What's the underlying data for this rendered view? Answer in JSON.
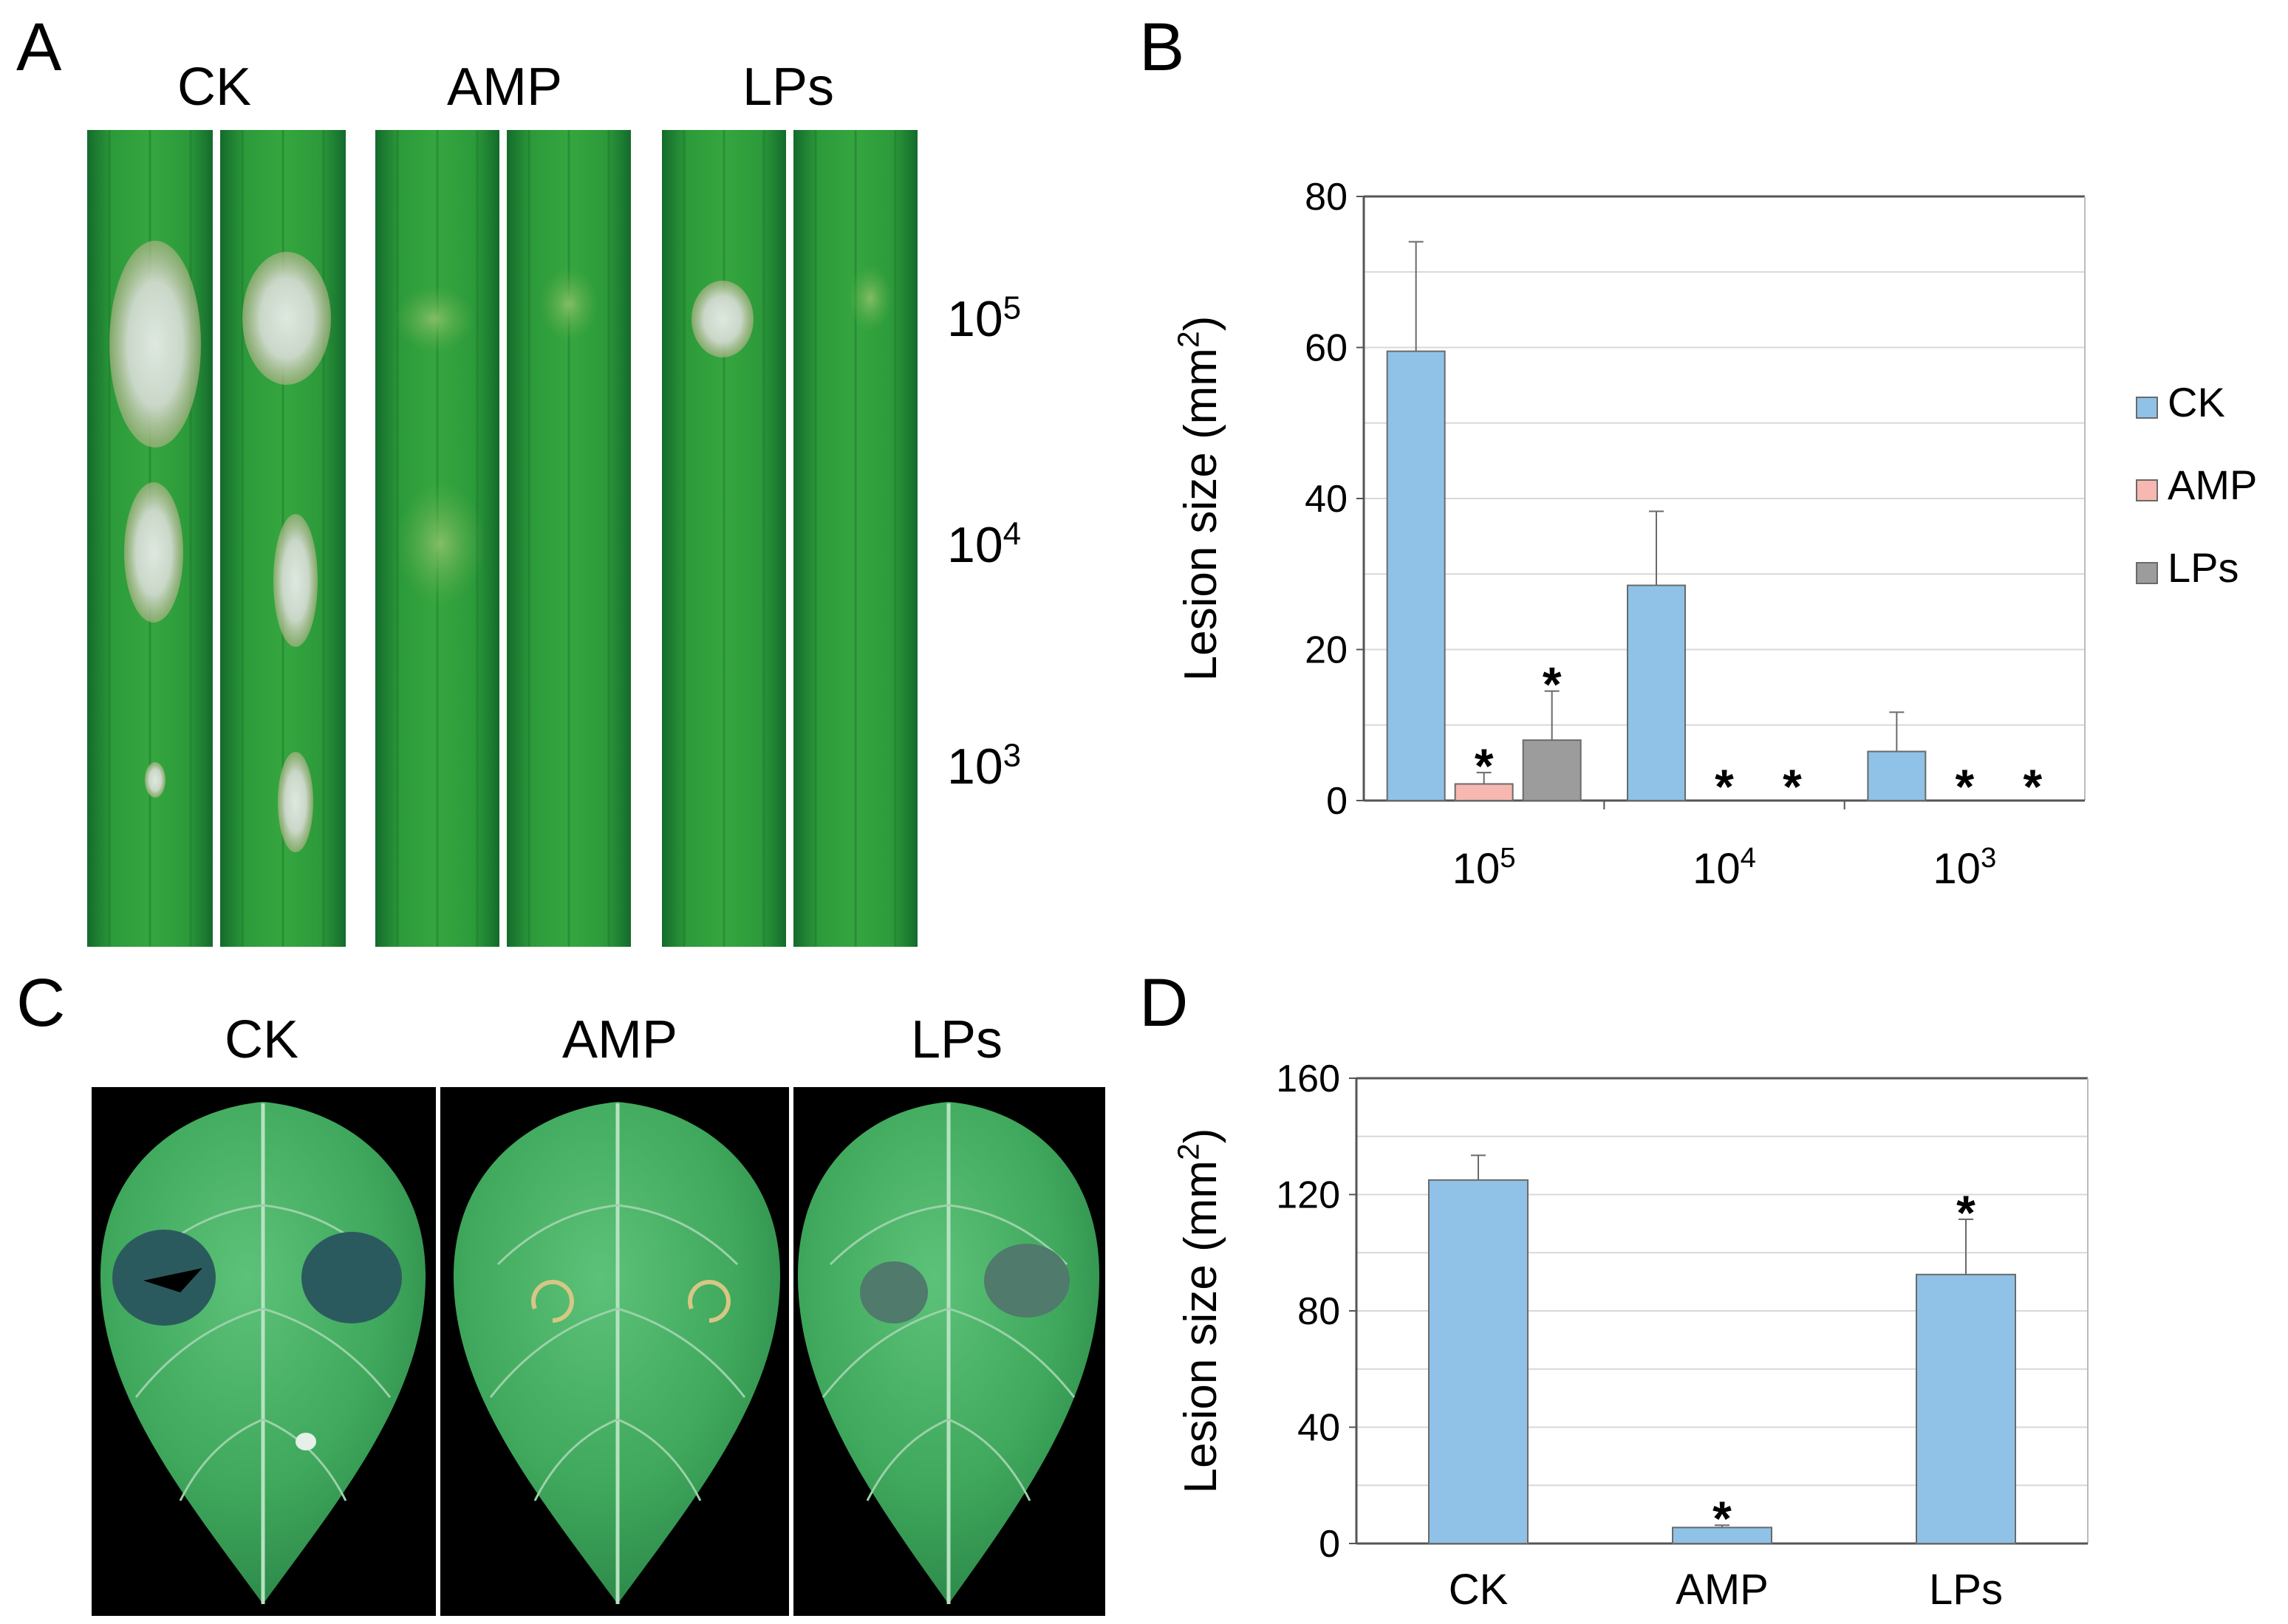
{
  "figure": {
    "panel_a": {
      "letter": "A",
      "groups": [
        "CK",
        "AMP",
        "LPs"
      ],
      "doses": [
        {
          "base": "10",
          "exp": "5"
        },
        {
          "base": "10",
          "exp": "4"
        },
        {
          "base": "10",
          "exp": "3"
        }
      ]
    },
    "panel_b": {
      "letter": "B"
    },
    "panel_c": {
      "letter": "C",
      "groups": [
        "CK",
        "AMP",
        "LPs"
      ]
    },
    "panel_d": {
      "letter": "D"
    }
  },
  "colors": {
    "ck": "#8fc2e6",
    "amp": "#f6b8b0",
    "lps": "#9c9c9c",
    "stroke": "#505050",
    "grid": "#d8d8d8"
  },
  "chart_data": [
    {
      "id": "B",
      "type": "bar",
      "ylabel": "Lesion size (mm",
      "ylabel_sup": "2",
      "ylabel_close": ")",
      "ylim": [
        0,
        80
      ],
      "yticks": [
        0,
        20,
        40,
        60,
        80
      ],
      "gridlines": [
        10,
        20,
        30,
        40,
        50,
        60,
        70
      ],
      "categories": [
        {
          "base": "10",
          "exp": "5"
        },
        {
          "base": "10",
          "exp": "4"
        },
        {
          "base": "10",
          "exp": "3"
        }
      ],
      "legend_position": "right",
      "significance_marker": "*",
      "series": [
        {
          "name": "CK",
          "color_key": "ck",
          "values": [
            59.5,
            28.5,
            6.5
          ],
          "errors": [
            14.5,
            9.8,
            5.2
          ],
          "significant": [
            false,
            false,
            false
          ]
        },
        {
          "name": "AMP",
          "color_key": "amp",
          "values": [
            2.2,
            0,
            0
          ],
          "errors": [
            1.5,
            0,
            0
          ],
          "significant": [
            true,
            true,
            true
          ]
        },
        {
          "name": "LPs",
          "color_key": "lps",
          "values": [
            8,
            0,
            0
          ],
          "errors": [
            6.5,
            0,
            0
          ],
          "significant": [
            true,
            true,
            true
          ]
        }
      ]
    },
    {
      "id": "D",
      "type": "bar",
      "ylabel": "Lesion size (mm",
      "ylabel_sup": "2",
      "ylabel_close": ")",
      "ylim": [
        0,
        160
      ],
      "yticks": [
        0,
        40,
        80,
        120,
        160
      ],
      "gridlines": [
        20,
        40,
        60,
        80,
        100,
        120,
        140
      ],
      "categories": [
        "CK",
        "AMP",
        "LPs"
      ],
      "significance_marker": "*",
      "series": [
        {
          "name": "Lesion size",
          "color_key": "ck",
          "values": [
            125,
            5.5,
            92.5
          ],
          "errors": [
            8.5,
            0.8,
            19
          ],
          "significant": [
            false,
            true,
            true
          ]
        }
      ]
    }
  ]
}
